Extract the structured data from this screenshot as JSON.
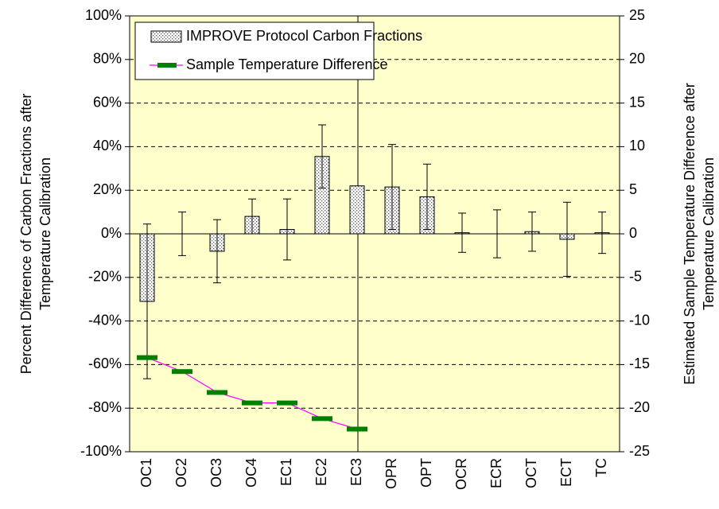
{
  "chart_data": {
    "type": "bar",
    "categories": [
      "OC1",
      "OC2",
      "OC3",
      "OC4",
      "EC1",
      "EC2",
      "EC3",
      "OPR",
      "OPT",
      "OCR",
      "ECR",
      "OCT",
      "ECT",
      "TC"
    ],
    "ylabel": [
      "Percent Difference of Carbon Fractions after",
      "Temperature Calibration"
    ],
    "y2label": [
      "Estimated Sample Temperature Difference after",
      "Temperature Calibration"
    ],
    "series": [
      {
        "name": "IMPROVE Protocol Carbon Fractions",
        "type": "bar",
        "color": "#000000",
        "values": [
          -31,
          0,
          -8,
          8,
          2,
          35.5,
          22,
          21.5,
          17,
          0.5,
          0,
          1,
          -2.5,
          0.5
        ],
        "errors": [
          35.5,
          10,
          14.5,
          8,
          14,
          14.5,
          0,
          19.5,
          15,
          9,
          11,
          9,
          17,
          9.5
        ]
      },
      {
        "name": "Sample Temperature Difference",
        "type": "line",
        "axis": "y2",
        "color": "#ff00ff",
        "marker_color": "#008000",
        "values": [
          -14.2,
          -15.8,
          -18.2,
          -19.4,
          -19.4,
          -21.2,
          -22.4,
          null,
          null,
          null,
          null,
          null,
          null,
          null
        ]
      }
    ],
    "ylim": [
      -100,
      100
    ],
    "yticks": [
      {
        "value": 100,
        "label": "100%"
      },
      {
        "value": 80,
        "label": "80%"
      },
      {
        "value": 60,
        "label": "60%"
      },
      {
        "value": 40,
        "label": "40%"
      },
      {
        "value": 20,
        "label": "20%"
      },
      {
        "value": 0,
        "label": "0%"
      },
      {
        "value": -20,
        "label": "-20%"
      },
      {
        "value": -40,
        "label": "-40%"
      },
      {
        "value": -60,
        "label": "-60%"
      },
      {
        "value": -80,
        "label": "-80%"
      },
      {
        "value": -100,
        "label": "-100%"
      }
    ],
    "y2lim": [
      -25,
      25
    ],
    "y2ticks": [
      25,
      20,
      15,
      10,
      5,
      0,
      -5,
      -10,
      -15,
      -20,
      -25
    ],
    "grid": true,
    "background": "#ffffcc",
    "legend": "upper left"
  }
}
